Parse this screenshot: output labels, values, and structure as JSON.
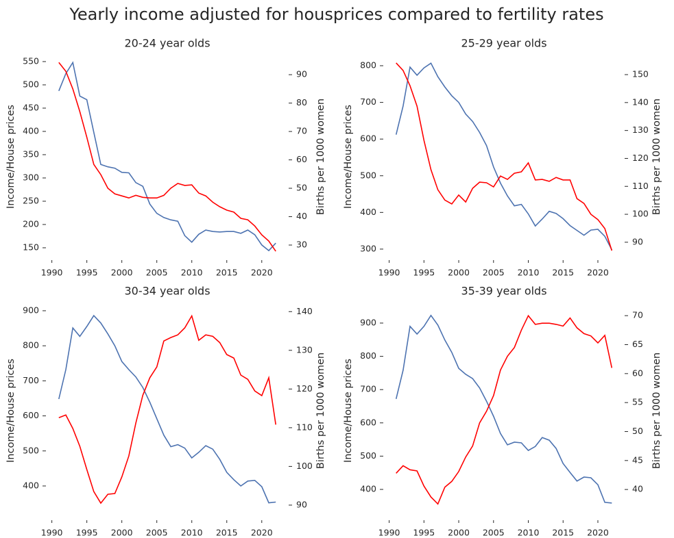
{
  "title": "Yearly income adjusted for housprices compared to fertility rates",
  "chart_data": [
    {
      "type": "line",
      "title": "20-24 year olds",
      "ylabel": "Income/House prices",
      "y2label": "Births per 1000 women",
      "x": [
        1991,
        1992,
        1993,
        1994,
        1995,
        1996,
        1997,
        1998,
        1999,
        2000,
        2001,
        2002,
        2003,
        2004,
        2005,
        2006,
        2007,
        2008,
        2009,
        2010,
        2011,
        2012,
        2013,
        2014,
        2015,
        2016,
        2017,
        2018,
        2019,
        2020,
        2021,
        2022
      ],
      "xlim": [
        1989.45,
        2023.55
      ],
      "xticks": [
        1990,
        1995,
        2000,
        2005,
        2010,
        2015,
        2020
      ],
      "ylim": [
        123.5,
        567.6
      ],
      "yticks": [
        150,
        200,
        250,
        300,
        350,
        400,
        450,
        500,
        550
      ],
      "y2lim": [
        24.7,
        97.5
      ],
      "y2ticks": [
        30,
        40,
        50,
        60,
        70,
        80,
        90
      ],
      "series": [
        {
          "name": "Income/House prices",
          "color": "#4c72b0",
          "values": [
            487,
            524,
            548,
            476,
            468,
            398,
            329,
            324,
            321,
            312,
            311,
            290,
            282,
            244,
            224,
            215,
            210,
            207,
            176,
            162,
            179,
            188,
            185,
            184,
            185,
            185,
            181,
            188,
            178,
            156,
            144,
            160
          ]
        },
        {
          "name": "Births per 1000 women",
          "color": "#ff0000",
          "axis": "y2",
          "values": [
            94.3,
            91.2,
            85,
            77,
            68,
            58.4,
            54.8,
            50,
            48,
            47.3,
            46.6,
            47.5,
            46.8,
            46.6,
            46.6,
            47.5,
            50,
            51.7,
            51,
            51.2,
            48.3,
            47.3,
            45.1,
            43.5,
            42.3,
            41.6,
            39.4,
            38.9,
            36.7,
            33.6,
            31.4,
            27.8
          ]
        }
      ]
    },
    {
      "type": "line",
      "title": "25-29 year olds",
      "ylabel": "Income/House prices",
      "y2label": "Births per 1000 women",
      "x": [
        1991,
        1992,
        1993,
        1994,
        1995,
        1996,
        1997,
        1998,
        1999,
        2000,
        2001,
        2002,
        2003,
        2004,
        2005,
        2006,
        2007,
        2008,
        2009,
        2010,
        2011,
        2012,
        2013,
        2014,
        2015,
        2016,
        2017,
        2018,
        2019,
        2020,
        2021,
        2022
      ],
      "xlim": [
        1989.45,
        2023.55
      ],
      "xticks": [
        1990,
        1995,
        2000,
        2005,
        2010,
        2015,
        2020
      ],
      "ylim": [
        270,
        833.6
      ],
      "yticks": [
        300,
        400,
        500,
        600,
        700,
        800
      ],
      "y2lim": [
        83.6,
        157.6
      ],
      "y2ticks": [
        90,
        100,
        110,
        120,
        130,
        140,
        150
      ],
      "series": [
        {
          "name": "Income/House prices",
          "color": "#4c72b0",
          "values": [
            612,
            690,
            796,
            774,
            794,
            807,
            770,
            742,
            718,
            700,
            668,
            648,
            618,
            582,
            524,
            480,
            445,
            418,
            422,
            396,
            363,
            382,
            403,
            397,
            383,
            364,
            351,
            338,
            352,
            354,
            335,
            298
          ]
        },
        {
          "name": "Births per 1000 women",
          "color": "#ff0000",
          "axis": "y2",
          "values": [
            154.2,
            151.5,
            146,
            138.7,
            126.5,
            116,
            108.8,
            105.1,
            103.7,
            106.9,
            104.4,
            109.3,
            111.5,
            111.3,
            109.8,
            113.7,
            112.5,
            114.7,
            115.2,
            118.4,
            112.3,
            112.5,
            111.8,
            113.2,
            112.3,
            112.3,
            105.6,
            103.9,
            100,
            98.1,
            94.9,
            87
          ]
        }
      ]
    },
    {
      "type": "line",
      "title": "30-34 year olds",
      "ylabel": "Income/House prices",
      "y2label": "Births per 1000 women",
      "x": [
        1991,
        1992,
        1993,
        1994,
        1995,
        1996,
        1997,
        1998,
        1999,
        2000,
        2001,
        2002,
        2003,
        2004,
        2005,
        2006,
        2007,
        2008,
        2009,
        2010,
        2011,
        2012,
        2013,
        2014,
        2015,
        2016,
        2017,
        2018,
        2019,
        2020,
        2021,
        2022
      ],
      "xlim": [
        1989.45,
        2023.55
      ],
      "xticks": [
        1990,
        1995,
        2000,
        2005,
        2010,
        2015,
        2020
      ],
      "ylim": [
        302.3,
        927.3
      ],
      "yticks": [
        400,
        500,
        600,
        700,
        800,
        900
      ],
      "y2lim": [
        86.1,
        142.7
      ],
      "y2ticks": [
        90,
        100,
        110,
        120,
        130,
        140
      ],
      "series": [
        {
          "name": "Income/House prices",
          "color": "#4c72b0",
          "values": [
            648,
            732,
            851,
            827,
            855,
            886,
            865,
            834,
            800,
            755,
            732,
            711,
            681,
            639,
            592,
            545,
            512,
            518,
            508,
            480,
            496,
            515,
            505,
            476,
            439,
            418,
            400,
            414,
            416,
            398,
            352,
            354
          ]
        },
        {
          "name": "Births per 1000 women",
          "color": "#ff0000",
          "axis": "y2",
          "values": [
            112.6,
            113.3,
            109.8,
            105.2,
            99.2,
            93.5,
            90.5,
            92.8,
            93,
            97.3,
            102.7,
            111.2,
            118.4,
            122.9,
            125.7,
            132.4,
            133.3,
            134,
            135.8,
            138.9,
            132.6,
            134,
            133.6,
            132,
            128.9,
            128,
            123.6,
            122.5,
            119.5,
            118.3,
            122.9,
            110.8
          ]
        }
      ]
    },
    {
      "type": "line",
      "title": "35-39 year olds",
      "ylabel": "Income/House prices",
      "y2label": "Births per 1000 women",
      "x": [
        1991,
        1992,
        1993,
        1994,
        1995,
        1996,
        1997,
        1998,
        1999,
        2000,
        2001,
        2002,
        2003,
        2004,
        2005,
        2006,
        2007,
        2008,
        2009,
        2010,
        2011,
        2012,
        2013,
        2014,
        2015,
        2016,
        2017,
        2018,
        2019,
        2020,
        2021,
        2022
      ],
      "xlim": [
        1989.45,
        2023.55
      ],
      "xticks": [
        1990,
        1995,
        2000,
        2005,
        2010,
        2015,
        2020
      ],
      "ylim": [
        307.4,
        965.8
      ],
      "yticks": [
        400,
        500,
        600,
        700,
        800,
        900
      ],
      "y2lim": [
        34.7,
        72.5
      ],
      "y2ticks": [
        40,
        45,
        50,
        55,
        60,
        65,
        70
      ],
      "series": [
        {
          "name": "Income/House prices",
          "color": "#4c72b0",
          "values": [
            672,
            758,
            890,
            867,
            890,
            923,
            894,
            849,
            812,
            764,
            746,
            733,
            705,
            665,
            620,
            568,
            534,
            542,
            540,
            517,
            529,
            556,
            548,
            523,
            478,
            451,
            425,
            437,
            435,
            414,
            361,
            359
          ]
        },
        {
          "name": "Births per 1000 women",
          "color": "#ff0000",
          "axis": "y2",
          "values": [
            42.8,
            44.1,
            43.4,
            43.2,
            40.6,
            38.7,
            37.5,
            40.4,
            41.4,
            43.1,
            45.6,
            47.5,
            51.5,
            53.5,
            56.2,
            60.6,
            63,
            64.5,
            67.5,
            70,
            68.5,
            68.7,
            68.7,
            68.5,
            68.2,
            69.6,
            67.9,
            66.9,
            66.5,
            65.3,
            66.6,
            61
          ]
        }
      ]
    }
  ]
}
